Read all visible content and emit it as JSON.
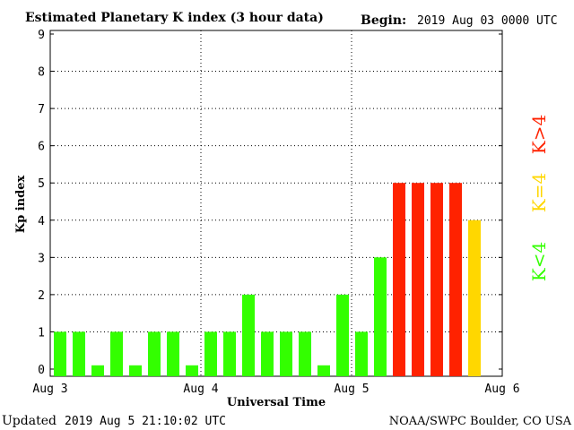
{
  "header": {
    "title": "Estimated Planetary K index (3 hour data)",
    "begin_label": "Begin:",
    "begin_value": "2019 Aug 03 0000 UTC"
  },
  "footer": {
    "updated_label": "Updated",
    "updated_value": "2019 Aug  5 21:10:02 UTC",
    "source": "NOAA/SWPC Boulder, CO USA"
  },
  "legend": {
    "high": "K>4",
    "equal": "K=4",
    "low": "K<4"
  },
  "colors": {
    "low": "#33ff00",
    "equal": "#ffd700",
    "high": "#ff2200",
    "axis": "#000000",
    "grid": "#000000"
  },
  "chart_data": {
    "type": "bar",
    "title": "Estimated Planetary K index (3 hour data)",
    "xlabel": "Universal Time",
    "ylabel": "Kp index",
    "ylim": [
      0,
      9
    ],
    "yticks": [
      "0",
      "1",
      "2",
      "3",
      "4",
      "5",
      "6",
      "7",
      "8",
      "9"
    ],
    "xticks": [
      "Aug 3",
      "Aug 4",
      "Aug 5",
      "Aug 6"
    ],
    "grid": true,
    "bars_per_day": 8,
    "values": [
      1,
      1,
      0,
      1,
      0,
      1,
      1,
      0,
      1,
      1,
      2,
      1,
      1,
      1,
      0,
      2,
      1,
      3,
      5,
      5,
      5,
      5,
      4
    ]
  }
}
